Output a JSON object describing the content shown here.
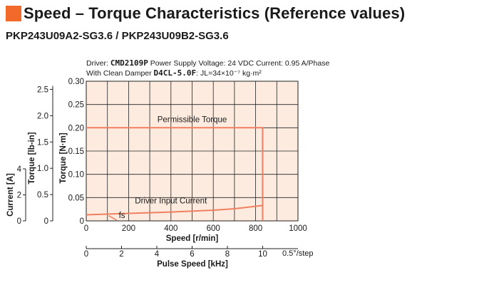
{
  "header": {
    "title": "Speed – Torque Characteristics (Reference values)",
    "model": "PKP243U09A2-SG3.6 / PKP243U09B2-SG3.6",
    "cond1_prefix": "Driver: ",
    "cond1_driver": "CMD2109P",
    "cond1_rest": "  Power Supply Voltage: 24 VDC  Current: 0.95 A/Phase",
    "cond2_prefix": "With Clean Damper ",
    "cond2_damper": "D4CL-5.0F",
    "cond2_rest": ": JL=34×10⁻⁷ kg·m²"
  },
  "colors": {
    "accent": "#f26a2a",
    "plot_bg": "#fdebdf",
    "curve": "#f08060",
    "grid": "#222222"
  },
  "chart_data": {
    "type": "line",
    "xlabel": "Speed [r/min]",
    "x_ticks": [
      0,
      200,
      400,
      600,
      800,
      1000
    ],
    "xlim": [
      0,
      1000
    ],
    "ylabel": "Torque [N·m]",
    "ylim": [
      0,
      0.3
    ],
    "y_ticks": [
      "0",
      "0.05",
      "0.10",
      "0.15",
      "0.20",
      "0.25",
      "0.30"
    ],
    "y2label": "Torque [lb-in]",
    "y2_ticks": [
      "0",
      "0.5",
      "1.0",
      "1.5",
      "2.0",
      "2.5"
    ],
    "y2_values": [
      0,
      0.5,
      1.0,
      1.5,
      2.0,
      2.5
    ],
    "y3label": "Current [A]",
    "y3_ticks": [
      "0",
      "2",
      "4"
    ],
    "y3_values": [
      0,
      2,
      4
    ],
    "x2label": "Pulse Speed [kHz]",
    "x2_ticks": [
      "0",
      "2",
      "4",
      "6",
      "8",
      "10"
    ],
    "x2_values": [
      0,
      2,
      4,
      6,
      8,
      10
    ],
    "x2_note": "0.5°/step",
    "series": [
      {
        "name": "Permissible Torque",
        "x": [
          0,
          833,
          833
        ],
        "y": [
          0.2,
          0.2,
          0
        ]
      },
      {
        "name": "Driver Input Current",
        "x": [
          0,
          200,
          400,
          600,
          700,
          833
        ],
        "y": [
          0.013,
          0.016,
          0.019,
          0.023,
          0.026,
          0.033
        ]
      }
    ],
    "fs_label": "fs",
    "fs_x": 130,
    "grid": true
  }
}
